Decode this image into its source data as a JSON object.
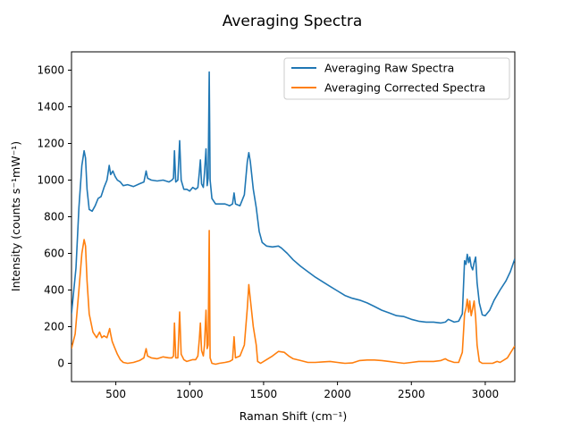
{
  "chart_data": {
    "type": "line",
    "title": "Averaging Spectra",
    "xlabel": "Raman Shift (cm⁻¹)",
    "ylabel": "Intensity (counts s⁻¹mW⁻¹)",
    "xlim": [
      200,
      3200
    ],
    "ylim": [
      -100,
      1700
    ],
    "xticks": [
      500,
      1000,
      1500,
      2000,
      2500,
      3000
    ],
    "yticks": [
      0,
      200,
      400,
      600,
      800,
      1000,
      1200,
      1400,
      1600
    ],
    "grid": false,
    "legend_position": "upper right",
    "series": [
      {
        "name": "Averaging Raw Spectra",
        "color": "#1f77b4",
        "points": [
          [
            200,
            270
          ],
          [
            230,
            520
          ],
          [
            250,
            850
          ],
          [
            270,
            1080
          ],
          [
            285,
            1160
          ],
          [
            295,
            1120
          ],
          [
            305,
            950
          ],
          [
            320,
            840
          ],
          [
            340,
            830
          ],
          [
            360,
            860
          ],
          [
            380,
            900
          ],
          [
            400,
            910
          ],
          [
            420,
            960
          ],
          [
            440,
            1000
          ],
          [
            455,
            1080
          ],
          [
            465,
            1030
          ],
          [
            480,
            1050
          ],
          [
            495,
            1020
          ],
          [
            510,
            1000
          ],
          [
            530,
            990
          ],
          [
            550,
            970
          ],
          [
            580,
            975
          ],
          [
            620,
            965
          ],
          [
            660,
            980
          ],
          [
            690,
            990
          ],
          [
            705,
            1050
          ],
          [
            715,
            1010
          ],
          [
            740,
            1000
          ],
          [
            780,
            995
          ],
          [
            820,
            1000
          ],
          [
            860,
            990
          ],
          [
            880,
            1000
          ],
          [
            890,
            1010
          ],
          [
            897,
            1160
          ],
          [
            905,
            990
          ],
          [
            920,
            1000
          ],
          [
            932,
            1215
          ],
          [
            942,
            1000
          ],
          [
            960,
            950
          ],
          [
            980,
            950
          ],
          [
            1000,
            940
          ],
          [
            1020,
            960
          ],
          [
            1040,
            950
          ],
          [
            1055,
            960
          ],
          [
            1065,
            1040
          ],
          [
            1072,
            1110
          ],
          [
            1080,
            980
          ],
          [
            1092,
            960
          ],
          [
            1100,
            1040
          ],
          [
            1110,
            1170
          ],
          [
            1118,
            970
          ],
          [
            1125,
            1010
          ],
          [
            1132,
            1590
          ],
          [
            1138,
            1000
          ],
          [
            1150,
            900
          ],
          [
            1175,
            870
          ],
          [
            1200,
            870
          ],
          [
            1240,
            870
          ],
          [
            1270,
            860
          ],
          [
            1290,
            870
          ],
          [
            1300,
            930
          ],
          [
            1310,
            870
          ],
          [
            1340,
            860
          ],
          [
            1370,
            920
          ],
          [
            1390,
            1100
          ],
          [
            1400,
            1150
          ],
          [
            1410,
            1100
          ],
          [
            1430,
            950
          ],
          [
            1450,
            850
          ],
          [
            1470,
            720
          ],
          [
            1490,
            660
          ],
          [
            1520,
            640
          ],
          [
            1560,
            635
          ],
          [
            1600,
            640
          ],
          [
            1620,
            630
          ],
          [
            1660,
            600
          ],
          [
            1700,
            565
          ],
          [
            1750,
            530
          ],
          [
            1800,
            500
          ],
          [
            1850,
            470
          ],
          [
            1900,
            445
          ],
          [
            1950,
            420
          ],
          [
            2000,
            395
          ],
          [
            2050,
            370
          ],
          [
            2100,
            355
          ],
          [
            2150,
            345
          ],
          [
            2200,
            330
          ],
          [
            2250,
            310
          ],
          [
            2300,
            290
          ],
          [
            2350,
            275
          ],
          [
            2400,
            260
          ],
          [
            2450,
            255
          ],
          [
            2500,
            240
          ],
          [
            2550,
            230
          ],
          [
            2600,
            225
          ],
          [
            2650,
            225
          ],
          [
            2700,
            220
          ],
          [
            2730,
            225
          ],
          [
            2750,
            240
          ],
          [
            2790,
            225
          ],
          [
            2820,
            230
          ],
          [
            2845,
            270
          ],
          [
            2860,
            560
          ],
          [
            2870,
            540
          ],
          [
            2878,
            595
          ],
          [
            2888,
            550
          ],
          [
            2895,
            580
          ],
          [
            2905,
            530
          ],
          [
            2915,
            510
          ],
          [
            2925,
            550
          ],
          [
            2935,
            580
          ],
          [
            2945,
            440
          ],
          [
            2960,
            330
          ],
          [
            2980,
            265
          ],
          [
            3000,
            260
          ],
          [
            3030,
            290
          ],
          [
            3060,
            345
          ],
          [
            3100,
            400
          ],
          [
            3140,
            450
          ],
          [
            3170,
            500
          ],
          [
            3200,
            570
          ]
        ]
      },
      {
        "name": "Averaging Corrected Spectra",
        "color": "#ff7f0e",
        "points": [
          [
            200,
            80
          ],
          [
            225,
            160
          ],
          [
            250,
            400
          ],
          [
            270,
            600
          ],
          [
            285,
            675
          ],
          [
            295,
            640
          ],
          [
            305,
            450
          ],
          [
            320,
            270
          ],
          [
            345,
            170
          ],
          [
            370,
            140
          ],
          [
            390,
            170
          ],
          [
            405,
            140
          ],
          [
            420,
            150
          ],
          [
            440,
            140
          ],
          [
            458,
            190
          ],
          [
            465,
            160
          ],
          [
            475,
            120
          ],
          [
            490,
            90
          ],
          [
            510,
            50
          ],
          [
            530,
            20
          ],
          [
            550,
            5
          ],
          [
            580,
            0
          ],
          [
            620,
            5
          ],
          [
            660,
            15
          ],
          [
            690,
            30
          ],
          [
            705,
            80
          ],
          [
            715,
            40
          ],
          [
            740,
            30
          ],
          [
            780,
            25
          ],
          [
            820,
            35
          ],
          [
            860,
            30
          ],
          [
            880,
            30
          ],
          [
            890,
            40
          ],
          [
            897,
            220
          ],
          [
            905,
            30
          ],
          [
            920,
            30
          ],
          [
            932,
            280
          ],
          [
            942,
            50
          ],
          [
            960,
            20
          ],
          [
            980,
            10
          ],
          [
            1000,
            15
          ],
          [
            1020,
            20
          ],
          [
            1040,
            20
          ],
          [
            1055,
            40
          ],
          [
            1065,
            130
          ],
          [
            1072,
            220
          ],
          [
            1080,
            70
          ],
          [
            1092,
            40
          ],
          [
            1100,
            100
          ],
          [
            1110,
            290
          ],
          [
            1118,
            80
          ],
          [
            1125,
            100
          ],
          [
            1132,
            725
          ],
          [
            1138,
            30
          ],
          [
            1150,
            0
          ],
          [
            1175,
            -5
          ],
          [
            1200,
            0
          ],
          [
            1240,
            5
          ],
          [
            1270,
            10
          ],
          [
            1290,
            20
          ],
          [
            1300,
            145
          ],
          [
            1310,
            30
          ],
          [
            1340,
            40
          ],
          [
            1370,
            100
          ],
          [
            1390,
            300
          ],
          [
            1400,
            430
          ],
          [
            1410,
            350
          ],
          [
            1430,
            200
          ],
          [
            1450,
            100
          ],
          [
            1460,
            10
          ],
          [
            1480,
            0
          ],
          [
            1520,
            20
          ],
          [
            1560,
            40
          ],
          [
            1600,
            65
          ],
          [
            1640,
            60
          ],
          [
            1670,
            40
          ],
          [
            1700,
            25
          ],
          [
            1750,
            15
          ],
          [
            1800,
            5
          ],
          [
            1850,
            5
          ],
          [
            1900,
            8
          ],
          [
            1950,
            10
          ],
          [
            2000,
            5
          ],
          [
            2050,
            0
          ],
          [
            2100,
            2
          ],
          [
            2150,
            15
          ],
          [
            2200,
            18
          ],
          [
            2250,
            18
          ],
          [
            2300,
            15
          ],
          [
            2350,
            10
          ],
          [
            2400,
            5
          ],
          [
            2450,
            0
          ],
          [
            2500,
            5
          ],
          [
            2550,
            10
          ],
          [
            2600,
            10
          ],
          [
            2650,
            10
          ],
          [
            2700,
            15
          ],
          [
            2730,
            25
          ],
          [
            2750,
            15
          ],
          [
            2790,
            5
          ],
          [
            2820,
            5
          ],
          [
            2845,
            60
          ],
          [
            2860,
            270
          ],
          [
            2870,
            300
          ],
          [
            2878,
            350
          ],
          [
            2888,
            280
          ],
          [
            2895,
            340
          ],
          [
            2905,
            260
          ],
          [
            2915,
            300
          ],
          [
            2925,
            340
          ],
          [
            2935,
            250
          ],
          [
            2945,
            100
          ],
          [
            2960,
            10
          ],
          [
            2980,
            0
          ],
          [
            3000,
            0
          ],
          [
            3050,
            0
          ],
          [
            3080,
            10
          ],
          [
            3100,
            5
          ],
          [
            3150,
            30
          ],
          [
            3200,
            95
          ]
        ]
      }
    ]
  }
}
